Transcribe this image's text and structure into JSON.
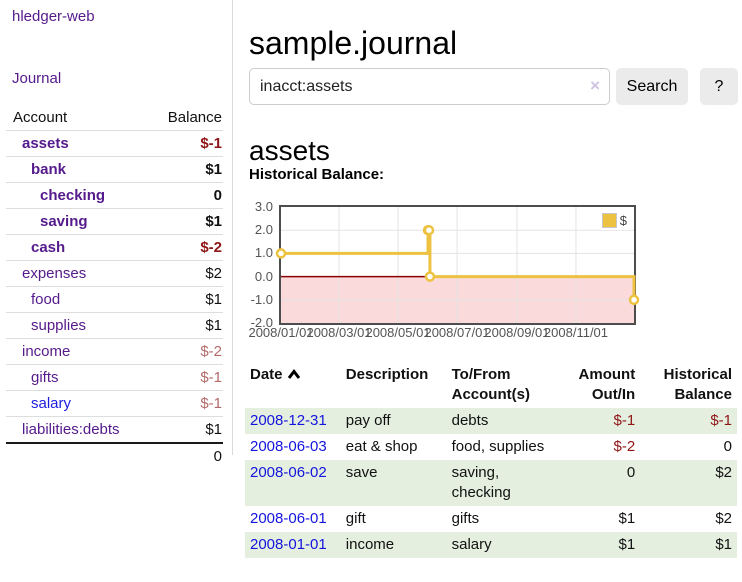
{
  "app": {
    "brand": "hledger-web",
    "nav_journal": "Journal"
  },
  "sidebar": {
    "headers": {
      "account": "Account",
      "balance": "Balance"
    },
    "rows": [
      {
        "name": "assets",
        "balance": "$-1"
      },
      {
        "name": "bank",
        "balance": "$1"
      },
      {
        "name": "checking",
        "balance": "0"
      },
      {
        "name": "saving",
        "balance": "$1"
      },
      {
        "name": "cash",
        "balance": "$-2"
      },
      {
        "name": "expenses",
        "balance": "$2"
      },
      {
        "name": "food",
        "balance": "$1"
      },
      {
        "name": "supplies",
        "balance": "$1"
      },
      {
        "name": "income",
        "balance": "$-2"
      },
      {
        "name": "gifts",
        "balance": "$-1"
      },
      {
        "name": "salary",
        "balance": "$-1"
      },
      {
        "name": "liabilities:debts",
        "balance": "$1"
      }
    ],
    "total": "0"
  },
  "main": {
    "title": "sample.journal",
    "search": {
      "value": "inacct:assets",
      "clear": "×",
      "button": "Search",
      "help": "?"
    },
    "account_heading": "assets",
    "chart_label": "Historical Balance:"
  },
  "chart_data": {
    "type": "line",
    "title": "Historical Balance",
    "legend_label": "$",
    "legend_position": "top-right",
    "step": true,
    "grid": true,
    "x_range": [
      "2008-01-01",
      "2008-12-31"
    ],
    "ylim": [
      -2,
      3
    ],
    "series": [
      {
        "name": "$",
        "color": "#edc240",
        "points": [
          [
            "2008-01-01",
            1
          ],
          [
            "2008-06-01",
            2
          ],
          [
            "2008-06-02",
            2
          ],
          [
            "2008-06-03",
            0
          ],
          [
            "2008-12-31",
            -1
          ]
        ]
      }
    ],
    "yticks": [
      {
        "v": 3,
        "label": "3.0"
      },
      {
        "v": 2,
        "label": "2.0"
      },
      {
        "v": 1,
        "label": "1.0"
      },
      {
        "v": 0,
        "label": "0.0"
      },
      {
        "v": -1,
        "label": "-1.0"
      },
      {
        "v": -2,
        "label": "-2.0"
      }
    ],
    "xticks": [
      {
        "date": "2008-01-01",
        "label": "2008/01/01"
      },
      {
        "date": "2008-03-01",
        "label": "2008/03/01"
      },
      {
        "date": "2008-05-01",
        "label": "2008/05/01"
      },
      {
        "date": "2008-07-01",
        "label": "2008/07/01"
      },
      {
        "date": "2008-09-01",
        "label": "2008/09/01"
      },
      {
        "date": "2008-11-01",
        "label": "2008/11/01"
      }
    ],
    "zero_line_color": "#8b0000",
    "negative_region_color": "#fadada"
  },
  "register": {
    "headers": {
      "date": "Date",
      "description": "Description",
      "accounts": "To/From Account(s)",
      "amount": "Amount Out/In",
      "balance": "Historical Balance"
    },
    "rows": [
      {
        "date": "2008-12-31",
        "description": "pay off",
        "accounts": "debts",
        "amount": "$-1",
        "balance": "$-1"
      },
      {
        "date": "2008-06-03",
        "description": "eat & shop",
        "accounts": "food, supplies",
        "amount": "$-2",
        "balance": "0"
      },
      {
        "date": "2008-06-02",
        "description": "save",
        "accounts": "saving, checking",
        "amount": "0",
        "balance": "$2"
      },
      {
        "date": "2008-06-01",
        "description": "gift",
        "accounts": "gifts",
        "amount": "$1",
        "balance": "$2"
      },
      {
        "date": "2008-01-01",
        "description": "income",
        "accounts": "salary",
        "amount": "$1",
        "balance": "$1"
      }
    ]
  }
}
